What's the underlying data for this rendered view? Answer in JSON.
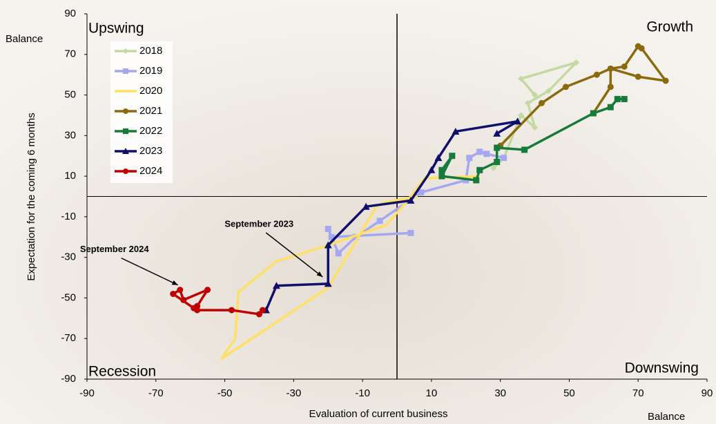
{
  "chart_data": {
    "type": "line",
    "x_label": "Evaluation of current business",
    "y_label": "Expectation for the coming 6 months",
    "x_unit_label": "Balance",
    "y_unit_label": "Balance",
    "xlim": [
      -90,
      90
    ],
    "ylim": [
      -90,
      90
    ],
    "xticks": [
      -90,
      -70,
      -50,
      -30,
      -10,
      10,
      30,
      50,
      70,
      90
    ],
    "yticks": [
      -90,
      -70,
      -50,
      -30,
      -10,
      10,
      30,
      50,
      70,
      90
    ],
    "quadrants": {
      "top_left": "Upswing",
      "top_right": "Growth",
      "bottom_left": "Recession",
      "bottom_right": "Downswing"
    },
    "legend": "top-left",
    "series": [
      {
        "name": "2018",
        "color": "#c4d9a0",
        "marker": "diamond",
        "x": [
          28,
          31,
          36,
          40,
          38,
          44,
          52,
          36,
          40
        ],
        "values": [
          14,
          19,
          40,
          34,
          46,
          52,
          66,
          58,
          50
        ]
      },
      {
        "name": "2019",
        "color": "#a5a8f0",
        "marker": "square",
        "x": [
          4,
          -19,
          -20,
          -17,
          -12,
          -5,
          7,
          20,
          21,
          24,
          26,
          31
        ],
        "values": [
          -18,
          -20,
          -16,
          -28,
          -20,
          -12,
          2,
          8,
          19,
          22,
          21,
          19
        ]
      },
      {
        "name": "2020",
        "color": "#ffe066",
        "marker": "none",
        "x": [
          24,
          8,
          4,
          -3,
          -20,
          -35,
          -46,
          -47,
          -51,
          -20,
          -6,
          -4,
          6
        ],
        "values": [
          10,
          9,
          0,
          -14,
          -24,
          -32,
          -47,
          -70,
          -80,
          -45,
          -5,
          -3,
          0
        ]
      },
      {
        "name": "2021",
        "color": "#8b6a0e",
        "marker": "circle",
        "x": [
          30,
          42,
          49,
          58,
          62,
          66,
          70,
          71,
          78,
          70,
          62,
          62,
          57
        ],
        "values": [
          25,
          46,
          54,
          60,
          63,
          64,
          74,
          73,
          57,
          59,
          63,
          54,
          41
        ]
      },
      {
        "name": "2022",
        "color": "#167a3a",
        "marker": "square",
        "x": [
          13,
          16,
          13,
          23,
          24,
          29,
          29,
          37,
          57,
          62,
          64,
          66
        ],
        "values": [
          13,
          20,
          10,
          8,
          13,
          17,
          24,
          23,
          41,
          44,
          48,
          48
        ]
      },
      {
        "name": "2023",
        "color": "#0f0f6e",
        "marker": "triangle",
        "x": [
          29,
          35,
          17,
          12,
          10,
          4,
          -9,
          -20,
          -20,
          -35,
          -38
        ],
        "values": [
          31,
          37,
          32,
          19,
          13,
          -2,
          -5,
          -24,
          -43,
          -44,
          -56
        ]
      },
      {
        "name": "2024",
        "color": "#c00000",
        "marker": "circle",
        "x": [
          -39,
          -40,
          -48,
          -58,
          -58,
          -55,
          -62,
          -63,
          -65,
          -59
        ],
        "values": [
          -56,
          -58,
          -56,
          -56,
          -54,
          -46,
          -51,
          -46,
          -48,
          -55
        ]
      }
    ],
    "annotations": [
      {
        "text": "September 2023",
        "x": -21,
        "y": -41
      },
      {
        "text": "September 2024",
        "x": -63,
        "y": -45
      }
    ]
  }
}
